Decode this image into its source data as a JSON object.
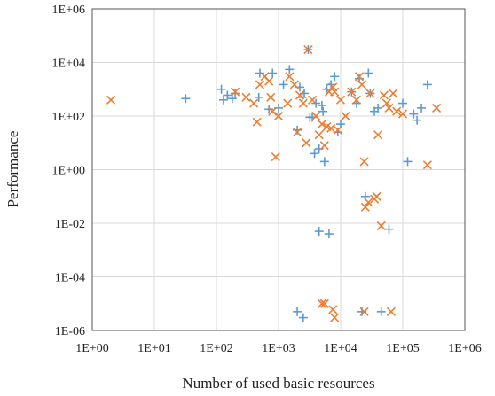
{
  "chart_data": {
    "type": "scatter",
    "xscale": "log",
    "yscale": "log",
    "xlim": [
      1,
      1000000
    ],
    "ylim": [
      1e-06,
      1000000
    ],
    "xlabel": "Number of used basic resources",
    "ylabel": "Performance",
    "xticks": [
      "1E+00",
      "1E+01",
      "1E+02",
      "1E+03",
      "1E+04",
      "1E+05",
      "1E+06"
    ],
    "yticks": [
      "1E+06",
      "1E+04",
      "1E+02",
      "1E+00",
      "1E-02",
      "1E-04",
      "1E-06"
    ],
    "grid": true,
    "legend": "none",
    "series": [
      {
        "marker": "plus",
        "color": "#5b9bd5",
        "points": [
          [
            32,
            450
          ],
          [
            120,
            1000
          ],
          [
            130,
            400
          ],
          [
            150,
            600
          ],
          [
            180,
            450
          ],
          [
            200,
            700
          ],
          [
            480,
            500
          ],
          [
            500,
            4000
          ],
          [
            700,
            180
          ],
          [
            800,
            4000
          ],
          [
            1000,
            200
          ],
          [
            1200,
            1500
          ],
          [
            1500,
            5500
          ],
          [
            2000,
            30
          ],
          [
            2200,
            1200
          ],
          [
            2400,
            500
          ],
          [
            2600,
            700
          ],
          [
            3000,
            30000
          ],
          [
            3200,
            90
          ],
          [
            3500,
            90
          ],
          [
            3800,
            4
          ],
          [
            4000,
            300
          ],
          [
            4500,
            6
          ],
          [
            5000,
            250
          ],
          [
            5200,
            150
          ],
          [
            5500,
            2
          ],
          [
            6000,
            1000
          ],
          [
            7000,
            1500
          ],
          [
            8000,
            3000
          ],
          [
            9000,
            25
          ],
          [
            10000,
            50
          ],
          [
            15000,
            800
          ],
          [
            18000,
            300
          ],
          [
            20000,
            2500
          ],
          [
            25000,
            0.1
          ],
          [
            28000,
            4000
          ],
          [
            30000,
            700
          ],
          [
            35000,
            150
          ],
          [
            40000,
            200
          ],
          [
            60000,
            0.006
          ],
          [
            100000,
            300
          ],
          [
            120000,
            2
          ],
          [
            150000,
            120
          ],
          [
            170000,
            70
          ],
          [
            200000,
            200
          ],
          [
            250000,
            1500
          ],
          [
            4500,
            0.005
          ],
          [
            6500,
            0.004
          ],
          [
            2000,
            5e-06
          ],
          [
            2500,
            3e-06
          ],
          [
            22000,
            5e-06
          ],
          [
            45000,
            5e-06
          ]
        ]
      },
      {
        "marker": "x",
        "color": "#ed7d31",
        "points": [
          [
            2,
            400
          ],
          [
            200,
            800
          ],
          [
            300,
            500
          ],
          [
            400,
            300
          ],
          [
            450,
            60
          ],
          [
            500,
            1500
          ],
          [
            600,
            3000
          ],
          [
            700,
            2000
          ],
          [
            750,
            500
          ],
          [
            800,
            150
          ],
          [
            900,
            3
          ],
          [
            1000,
            100
          ],
          [
            1400,
            300
          ],
          [
            1500,
            3000
          ],
          [
            1800,
            1500
          ],
          [
            2000,
            25
          ],
          [
            2200,
            600
          ],
          [
            2500,
            300
          ],
          [
            2800,
            10
          ],
          [
            3000,
            30000
          ],
          [
            3500,
            400
          ],
          [
            4000,
            100
          ],
          [
            4500,
            20
          ],
          [
            5000,
            50
          ],
          [
            5500,
            8
          ],
          [
            6000,
            40
          ],
          [
            6500,
            800
          ],
          [
            7000,
            35
          ],
          [
            7500,
            1200
          ],
          [
            8000,
            800
          ],
          [
            9000,
            30
          ],
          [
            10000,
            400
          ],
          [
            12000,
            100
          ],
          [
            15000,
            800
          ],
          [
            18000,
            400
          ],
          [
            20000,
            3000
          ],
          [
            22000,
            1500
          ],
          [
            24000,
            2
          ],
          [
            25000,
            0.04
          ],
          [
            28000,
            0.06
          ],
          [
            30000,
            700
          ],
          [
            35000,
            0.08
          ],
          [
            38000,
            0.1
          ],
          [
            40000,
            20
          ],
          [
            45000,
            0.008
          ],
          [
            50000,
            600
          ],
          [
            55000,
            300
          ],
          [
            60000,
            200
          ],
          [
            70000,
            700
          ],
          [
            80000,
            150
          ],
          [
            100000,
            120
          ],
          [
            250000,
            1.5
          ],
          [
            350000,
            200
          ],
          [
            5000,
            1e-05
          ],
          [
            5500,
            1e-05
          ],
          [
            7500,
            6e-06
          ],
          [
            8000,
            3e-06
          ],
          [
            24000,
            5e-06
          ],
          [
            65000,
            5e-06
          ]
        ]
      }
    ]
  }
}
